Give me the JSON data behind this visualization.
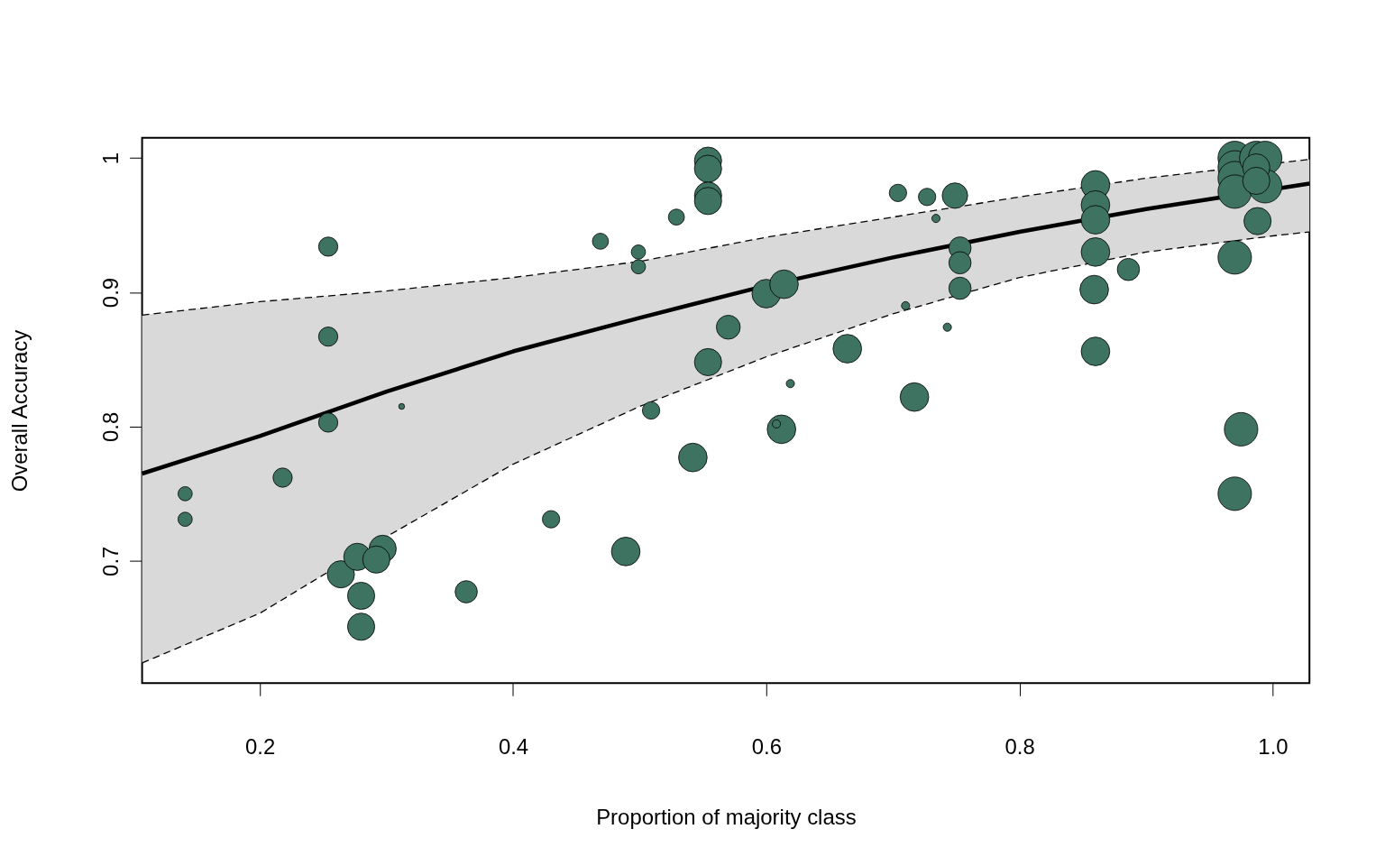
{
  "chart_data": {
    "type": "bubble",
    "xlabel": "Proportion of majority class",
    "ylabel": "Overall Accuracy",
    "xlim": [
      0.107,
      1.029
    ],
    "ylim": [
      0.609,
      1.015
    ],
    "xticks": [
      0.2,
      0.4,
      0.6,
      0.8,
      {
        "value": 1,
        "label": "1.0"
      }
    ],
    "yticks": [
      0.7,
      0.8,
      0.9,
      1
    ],
    "grid": false,
    "legend": false,
    "marker": "circle",
    "series": [
      {
        "type": "bubble",
        "color": "#3e7361",
        "x": [
          0.141,
          0.141,
          0.218,
          0.254,
          0.254,
          0.254,
          0.312,
          0.264,
          0.277,
          0.297,
          0.292,
          0.28,
          0.28,
          0.363,
          0.43,
          0.469,
          0.499,
          0.499,
          0.529,
          0.554,
          0.554,
          0.554,
          0.554,
          0.489,
          0.509,
          0.542,
          0.554,
          0.57,
          0.6,
          0.614,
          0.612,
          0.608,
          0.619,
          0.664,
          0.704,
          0.727,
          0.734,
          0.749,
          0.71,
          0.717,
          0.743,
          0.753,
          0.753,
          0.753,
          0.86,
          0.86,
          0.86,
          0.86,
          0.859,
          0.86,
          0.886,
          0.97,
          0.97,
          0.97,
          0.97,
          0.987,
          0.994,
          0.994,
          0.987,
          0.987,
          0.988,
          0.97,
          0.975,
          0.97
        ],
        "values": [
          0.75,
          0.731,
          0.762,
          0.934,
          0.867,
          0.803,
          0.815,
          0.69,
          0.703,
          0.709,
          0.701,
          0.674,
          0.651,
          0.677,
          0.731,
          0.938,
          0.93,
          0.919,
          0.956,
          0.998,
          0.992,
          0.972,
          0.968,
          0.707,
          0.812,
          0.777,
          0.848,
          0.874,
          0.899,
          0.906,
          0.798,
          0.802,
          0.832,
          0.858,
          0.974,
          0.971,
          0.955,
          0.972,
          0.89,
          0.822,
          0.874,
          0.933,
          0.922,
          0.903,
          0.98,
          0.965,
          0.954,
          0.93,
          0.902,
          0.856,
          0.917,
          1.0,
          0.993,
          0.985,
          0.975,
          1.0,
          1.0,
          0.979,
          0.993,
          0.983,
          0.953,
          0.926,
          0.798,
          0.75
        ],
        "sizes": [
          0.18,
          0.18,
          0.33,
          0.33,
          0.33,
          0.33,
          0.03,
          0.66,
          0.66,
          0.66,
          0.66,
          0.66,
          0.66,
          0.44,
          0.27,
          0.23,
          0.18,
          0.18,
          0.23,
          0.66,
          0.66,
          0.66,
          0.66,
          0.73,
          0.27,
          0.73,
          0.66,
          0.51,
          0.73,
          0.73,
          0.73,
          0.06,
          0.06,
          0.73,
          0.27,
          0.27,
          0.06,
          0.58,
          0.06,
          0.73,
          0.06,
          0.44,
          0.44,
          0.44,
          0.73,
          0.73,
          0.73,
          0.73,
          0.73,
          0.73,
          0.44,
          1,
          1,
          1,
          1,
          1,
          1,
          1,
          0.66,
          0.66,
          0.66,
          1,
          1,
          1
        ]
      },
      {
        "type": "line",
        "color": "#000000",
        "line_style": "solid",
        "marker": "none",
        "x": [
          0.107,
          0.2,
          0.3,
          0.4,
          0.5,
          0.6,
          0.7,
          0.8,
          0.9,
          1.029
        ],
        "values": [
          0.765,
          0.793,
          0.826,
          0.856,
          0.881,
          0.905,
          0.926,
          0.945,
          0.962,
          0.981
        ],
        "lower": [
          0.624,
          0.661,
          0.718,
          0.772,
          0.815,
          0.852,
          0.884,
          0.911,
          0.93,
          0.945
        ],
        "upper": [
          0.883,
          0.893,
          0.901,
          0.911,
          0.923,
          0.941,
          0.956,
          0.971,
          0.985,
          0.999
        ]
      },
      {
        "type": "line",
        "color": "#000000",
        "line_style": "dashed",
        "marker": "none",
        "x": [
          0.107,
          0.2,
          0.3,
          0.4,
          0.5,
          0.6,
          0.7,
          0.8,
          0.9,
          1.0,
          1.029
        ],
        "values": [
          0.624,
          0.661,
          0.718,
          0.772,
          0.815,
          0.852,
          0.884,
          0.911,
          0.93,
          0.942,
          0.945
        ]
      },
      {
        "type": "line",
        "color": "#000000",
        "line_style": "dashed",
        "marker": "none",
        "x": [
          0.107,
          0.2,
          0.3,
          0.4,
          0.5,
          0.6,
          0.7,
          0.8,
          0.9,
          1.029
        ],
        "values": [
          0.883,
          0.893,
          0.901,
          0.911,
          0.923,
          0.941,
          0.956,
          0.971,
          0.985,
          0.999
        ]
      }
    ]
  }
}
